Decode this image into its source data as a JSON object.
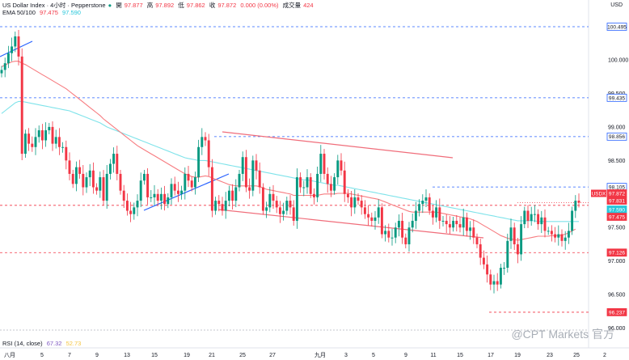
{
  "header": {
    "symbol_line": "US Dollar Index · 4小时 · Pepperstone",
    "ohlc": [
      {
        "k": "開",
        "v": "97.877"
      },
      {
        "k": "高",
        "v": "97.892"
      },
      {
        "k": "低",
        "v": "97.862"
      },
      {
        "k": "收",
        "v": "97.872"
      }
    ],
    "change": "0.000 (0.00%)",
    "volume_label": "成交量",
    "volume": "424",
    "ema_label": "EMA 50/100",
    "ema50": "97.475",
    "ema100": "97.590",
    "currency_icon": "USD"
  },
  "rsi": {
    "label": "RSI (14, close)",
    "v1": "67.32",
    "v2": "52.73"
  },
  "watermark": "@CPT Markets 官方",
  "colors": {
    "up": "#089981",
    "down": "#f23645",
    "ema50": "#f77c80",
    "ema100": "#7fe3ea",
    "blue": "#2962ff",
    "channel": "#f06d7a"
  },
  "chart_data": {
    "type": "candlestick",
    "symbol": "USDX",
    "ylim": [
      95.85,
      100.7
    ],
    "y_ticks": [
      "100.000",
      "99.500",
      "99.000",
      "98.500",
      "98.000",
      "97.500",
      "97.000",
      "96.500",
      "96.000"
    ],
    "x_ticks": [
      "八月",
      "5",
      "7",
      "9",
      "13",
      "15",
      "19",
      "21",
      "25",
      "27",
      "九月",
      "3",
      "5",
      "9",
      "11",
      "15",
      "17",
      "19",
      "23",
      "25",
      "2"
    ],
    "price_tags": [
      {
        "v": "100.495",
        "type": "level"
      },
      {
        "v": "99.435",
        "type": "level"
      },
      {
        "v": "98.856",
        "type": "level"
      },
      {
        "v": "98.105",
        "type": "level"
      },
      {
        "v": "97.872",
        "type": "current",
        "label": "USDX"
      },
      {
        "v": "97.831",
        "type": "red"
      },
      {
        "v": "97.590",
        "type": "ema100"
      },
      {
        "v": "97.475",
        "type": "ema50"
      },
      {
        "v": "97.126",
        "type": "red"
      },
      {
        "v": "96.237",
        "type": "red"
      }
    ],
    "close": [
      99.85,
      99.95,
      100.1,
      100.2,
      100.35,
      100.05,
      98.6,
      98.9,
      98.75,
      98.7,
      98.85,
      98.95,
      98.8,
      98.95,
      99.0,
      98.75,
      98.85,
      98.7,
      98.7,
      98.5,
      98.3,
      98.15,
      98.4,
      98.3,
      98.1,
      98.25,
      98.35,
      98.1,
      98.05,
      98.25,
      97.9,
      98.3,
      98.45,
      98.6,
      98.3,
      98.05,
      97.9,
      97.75,
      97.7,
      97.8,
      97.9,
      98.2,
      98.3,
      97.95,
      97.95,
      98.0,
      97.9,
      98.0,
      97.85,
      97.95,
      98.15,
      98.05,
      98.0,
      98.05,
      98.3,
      98.2,
      98.1,
      98.25,
      98.7,
      98.85,
      98.8,
      98.4,
      97.75,
      97.9,
      97.85,
      97.75,
      97.9,
      98.05,
      97.9,
      98.1,
      98.3,
      98.55,
      98.1,
      98.05,
      98.5,
      98.35,
      98.1,
      97.75,
      97.8,
      98.0,
      97.9,
      97.8,
      97.7,
      97.75,
      97.9,
      97.8,
      97.6,
      98.25,
      98.1,
      98.1,
      98.25,
      98.0,
      97.95,
      98.3,
      98.6,
      98.3,
      98.15,
      98.05,
      98.25,
      98.5,
      98.35,
      98.0,
      97.95,
      97.8,
      97.95,
      97.9,
      97.8,
      97.7,
      97.65,
      97.6,
      97.65,
      97.8,
      97.4,
      97.45,
      97.35,
      97.35,
      97.5,
      97.6,
      97.35,
      97.25,
      97.5,
      97.6,
      97.75,
      97.85,
      97.9,
      97.95,
      97.75,
      97.65,
      97.8,
      97.6,
      97.6,
      97.55,
      97.5,
      97.6,
      97.55,
      97.5,
      97.65,
      97.45,
      97.5,
      97.35,
      97.25,
      97.05,
      96.95,
      96.8,
      96.65,
      96.7,
      96.65,
      96.9,
      96.9,
      97.3,
      97.5,
      97.25,
      97.1,
      97.55,
      97.75,
      97.6,
      97.7,
      97.7,
      97.55,
      97.65,
      97.45,
      97.45,
      97.4,
      97.35,
      97.4,
      97.3,
      97.35,
      97.45,
      97.75,
      97.9,
      97.87
    ],
    "ema50": [
      99.9,
      99.92,
      99.95,
      99.97,
      99.98,
      99.98,
      99.95,
      99.93,
      99.9,
      99.87,
      99.84,
      99.81,
      99.78,
      99.75,
      99.72,
      99.69,
      99.66,
      99.63,
      99.6,
      99.57,
      99.53,
      99.49,
      99.45,
      99.41,
      99.37,
      99.33,
      99.29,
      99.25,
      99.21,
      99.17,
      99.12,
      99.08,
      99.04,
      99.0,
      98.96,
      98.92,
      98.88,
      98.84,
      98.8,
      98.76,
      98.72,
      98.69,
      98.66,
      98.63,
      98.6,
      98.57,
      98.54,
      98.51,
      98.48,
      98.45,
      98.42,
      98.39,
      98.36,
      98.33,
      98.3,
      98.28,
      98.26,
      98.25,
      98.25,
      98.26,
      98.27,
      98.26,
      98.24,
      98.22,
      98.2,
      98.18,
      98.16,
      98.14,
      98.13,
      98.12,
      98.12,
      98.12,
      98.12,
      98.12,
      98.12,
      98.12,
      98.11,
      98.09,
      98.07,
      98.06,
      98.05,
      98.04,
      98.03,
      98.02,
      98.01,
      98.0,
      97.98,
      97.98,
      97.98,
      97.98,
      97.98,
      97.98,
      97.98,
      97.98,
      97.99,
      98.0,
      98.0,
      98.0,
      98.0,
      98.01,
      98.01,
      98.01,
      98.01,
      98.0,
      97.99,
      97.98,
      97.97,
      97.96,
      97.95,
      97.94,
      97.93,
      97.92,
      97.9,
      97.88,
      97.86,
      97.84,
      97.82,
      97.8,
      97.78,
      97.76,
      97.74,
      97.73,
      97.73,
      97.73,
      97.73,
      97.73,
      97.73,
      97.73,
      97.73,
      97.72,
      97.71,
      97.7,
      97.69,
      97.68,
      97.67,
      97.66,
      97.65,
      97.64,
      97.63,
      97.61,
      97.59,
      97.56,
      97.53,
      97.5,
      97.47,
      97.44,
      97.41,
      97.38,
      97.36,
      97.34,
      97.33,
      97.32,
      97.31,
      97.32,
      97.33,
      97.34,
      97.35,
      97.36,
      97.37,
      97.37,
      97.37,
      97.37,
      97.38,
      97.38,
      97.38,
      97.39,
      97.4,
      97.42,
      97.45,
      97.475
    ],
    "ema100": [
      99.2,
      99.24,
      99.28,
      99.32,
      99.36,
      99.38,
      99.38,
      99.37,
      99.36,
      99.35,
      99.34,
      99.33,
      99.32,
      99.31,
      99.3,
      99.29,
      99.28,
      99.27,
      99.26,
      99.25,
      99.24,
      99.22,
      99.2,
      99.18,
      99.16,
      99.14,
      99.12,
      99.1,
      99.08,
      99.06,
      99.03,
      99.0,
      98.98,
      98.96,
      98.94,
      98.92,
      98.9,
      98.88,
      98.86,
      98.84,
      98.82,
      98.8,
      98.78,
      98.76,
      98.74,
      98.72,
      98.7,
      98.68,
      98.66,
      98.64,
      98.62,
      98.6,
      98.58,
      98.56,
      98.54,
      98.53,
      98.52,
      98.51,
      98.5,
      98.5,
      98.5,
      98.49,
      98.48,
      98.47,
      98.46,
      98.45,
      98.44,
      98.43,
      98.42,
      98.41,
      98.4,
      98.39,
      98.38,
      98.37,
      98.36,
      98.35,
      98.34,
      98.33,
      98.32,
      98.31,
      98.3,
      98.29,
      98.28,
      98.27,
      98.26,
      98.25,
      98.24,
      98.23,
      98.22,
      98.21,
      98.21,
      98.2,
      98.19,
      98.18,
      98.17,
      98.16,
      98.15,
      98.14,
      98.13,
      98.13,
      98.12,
      98.11,
      98.1,
      98.09,
      98.08,
      98.07,
      98.06,
      98.05,
      98.04,
      98.03,
      98.02,
      98.01,
      98.0,
      97.99,
      97.98,
      97.97,
      97.96,
      97.95,
      97.94,
      97.93,
      97.92,
      97.91,
      97.9,
      97.89,
      97.88,
      97.87,
      97.86,
      97.85,
      97.84,
      97.83,
      97.82,
      97.81,
      97.8,
      97.79,
      97.78,
      97.77,
      97.76,
      97.75,
      97.74,
      97.73,
      97.72,
      97.71,
      97.7,
      97.69,
      97.68,
      97.67,
      97.66,
      97.65,
      97.64,
      97.63,
      97.62,
      97.61,
      97.6,
      97.6,
      97.6,
      97.6,
      97.6,
      97.6,
      97.59,
      97.59,
      97.59,
      97.59,
      97.59,
      97.59,
      97.59,
      97.59,
      97.59,
      97.59,
      97.59,
      97.59,
      97.59
    ]
  }
}
